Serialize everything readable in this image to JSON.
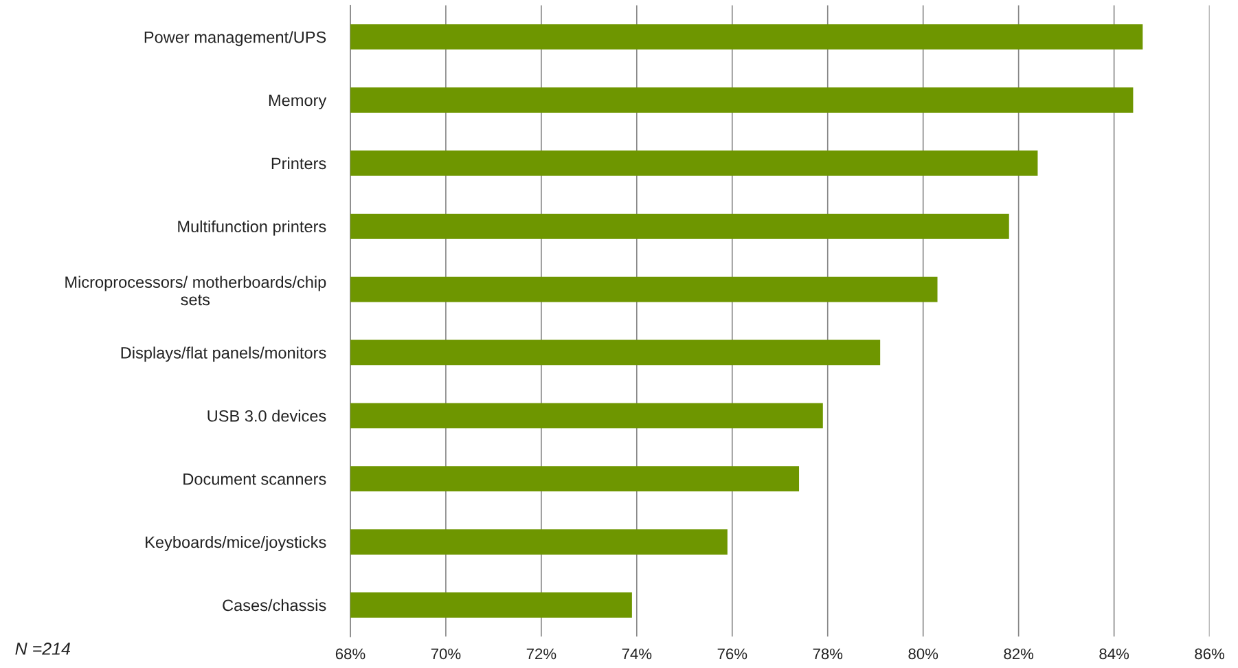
{
  "chart_data": {
    "type": "bar",
    "orientation": "horizontal",
    "categories": [
      "Power management/UPS",
      "Memory",
      "Printers",
      "Multifunction printers",
      "Microprocessors/ motherboards/chip sets",
      "Displays/flat panels/monitors",
      "USB 3.0 devices",
      "Document scanners",
      "Keyboards/mice/joysticks",
      "Cases/chassis"
    ],
    "values": [
      84.6,
      84.4,
      82.4,
      81.8,
      80.3,
      79.1,
      77.9,
      77.4,
      75.9,
      73.9
    ],
    "color": "#6e9600",
    "xlim": [
      68,
      86
    ],
    "xticks": [
      {
        "value": 68,
        "label": "68%"
      },
      {
        "value": 70,
        "label": "70%"
      },
      {
        "value": 72,
        "label": "72%"
      },
      {
        "value": 74,
        "label": "74%"
      },
      {
        "value": 76,
        "label": "76%"
      },
      {
        "value": 78,
        "label": "78%"
      },
      {
        "value": 80,
        "label": "80%"
      },
      {
        "value": 82,
        "label": "82%"
      },
      {
        "value": 84,
        "label": "84%"
      },
      {
        "value": 86,
        "label": "86%"
      }
    ],
    "grid": "x",
    "annotations": [
      "N =214"
    ]
  }
}
